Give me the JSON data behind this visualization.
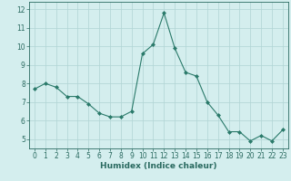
{
  "x": [
    0,
    1,
    2,
    3,
    4,
    5,
    6,
    7,
    8,
    9,
    10,
    11,
    12,
    13,
    14,
    15,
    16,
    17,
    18,
    19,
    20,
    21,
    22,
    23
  ],
  "y": [
    7.7,
    8.0,
    7.8,
    7.3,
    7.3,
    6.9,
    6.4,
    6.2,
    6.2,
    6.5,
    9.6,
    10.1,
    11.8,
    9.9,
    8.6,
    8.4,
    7.0,
    6.3,
    5.4,
    5.4,
    4.9,
    5.2,
    4.9,
    5.5
  ],
  "line_color": "#2a7a6a",
  "marker": "D",
  "marker_size": 2.0,
  "bg_color": "#d4eeee",
  "grid_color": "#b0d4d4",
  "xlabel": "Humidex (Indice chaleur)",
  "ylim": [
    4.5,
    12.4
  ],
  "xlim": [
    -0.5,
    23.5
  ],
  "yticks": [
    5,
    6,
    7,
    8,
    9,
    10,
    11,
    12
  ],
  "xticks": [
    0,
    1,
    2,
    3,
    4,
    5,
    6,
    7,
    8,
    9,
    10,
    11,
    12,
    13,
    14,
    15,
    16,
    17,
    18,
    19,
    20,
    21,
    22,
    23
  ],
  "xlabel_fontsize": 6.5,
  "tick_fontsize": 5.5,
  "tick_color": "#2a6a60",
  "label_color": "#2a6a60",
  "linewidth": 0.8
}
